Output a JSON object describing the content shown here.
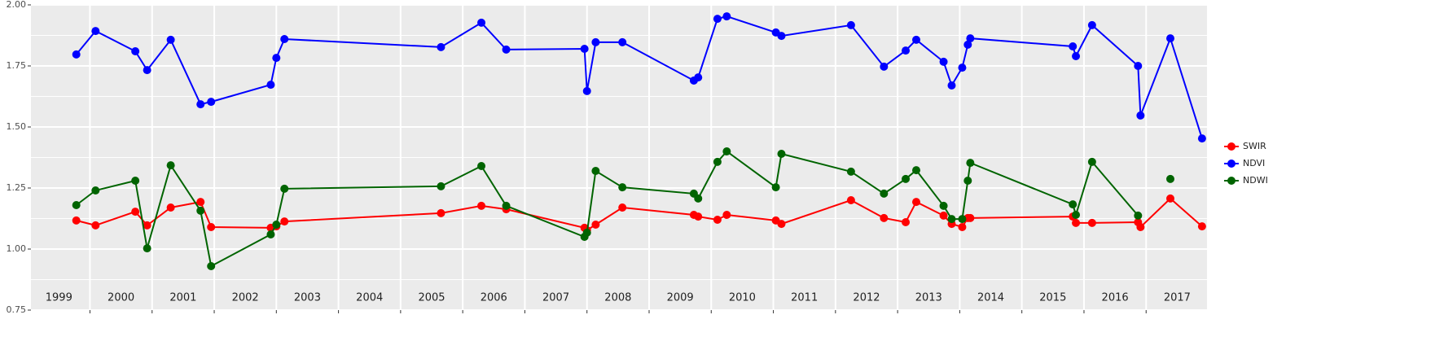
{
  "chart_data": {
    "type": "line",
    "x": [
      1999.78,
      2000.09,
      2000.73,
      2000.92,
      2001.3,
      2001.78,
      2001.95,
      2002.91,
      2003.0,
      2003.13,
      2005.65,
      2006.3,
      2006.7,
      2007.96,
      2008.0,
      2008.14,
      2008.57,
      2009.72,
      2009.79,
      2010.1,
      2010.25,
      2011.04,
      2011.13,
      2012.25,
      2012.78,
      2013.13,
      2013.3,
      2013.74,
      2013.87,
      2014.04,
      2014.13,
      2014.17,
      2015.82,
      2015.87,
      2016.13,
      2016.87,
      2016.91,
      2017.39,
      2017.9
    ],
    "series": [
      {
        "name": "SWIR",
        "color": "#ff0000",
        "values": [
          1.117,
          1.097,
          1.153,
          1.097,
          1.17,
          1.193,
          1.09,
          1.087,
          1.093,
          1.113,
          1.147,
          1.177,
          1.163,
          1.087,
          1.077,
          1.1,
          1.17,
          1.14,
          1.133,
          1.12,
          1.14,
          1.117,
          1.103,
          1.2,
          1.127,
          1.11,
          1.193,
          1.137,
          1.103,
          1.09,
          1.127,
          1.127,
          1.133,
          1.107,
          1.107,
          1.11,
          1.09,
          1.207,
          1.093
        ]
      },
      {
        "name": "NDVI",
        "color": "#0000ff",
        "values": [
          1.797,
          1.893,
          1.81,
          1.733,
          1.857,
          1.593,
          1.603,
          1.673,
          1.783,
          1.86,
          1.827,
          1.927,
          1.817,
          1.82,
          1.647,
          1.847,
          1.847,
          1.69,
          1.703,
          1.943,
          1.953,
          1.887,
          1.873,
          1.917,
          1.747,
          1.813,
          1.857,
          1.767,
          1.67,
          1.743,
          1.837,
          1.863,
          1.83,
          1.79,
          1.917,
          1.75,
          1.547,
          1.863,
          1.453
        ]
      },
      {
        "name": "NDWI",
        "color": "#006400",
        "values": [
          1.18,
          1.24,
          1.28,
          1.003,
          1.343,
          1.157,
          0.93,
          1.06,
          1.1,
          1.247,
          1.257,
          1.34,
          1.177,
          1.05,
          1.067,
          1.32,
          1.253,
          1.227,
          1.207,
          1.357,
          1.4,
          1.253,
          1.39,
          1.317,
          1.227,
          1.287,
          1.323,
          1.177,
          1.123,
          1.123,
          1.28,
          1.353,
          1.183,
          1.14,
          1.357,
          1.137,
          null,
          1.287,
          null
        ]
      }
    ],
    "xlim": [
      1999.05,
      2017.98
    ],
    "xticks": [
      {
        "value": 1999.5,
        "label": "1999"
      },
      {
        "value": 2000.5,
        "label": "2000"
      },
      {
        "value": 2001.5,
        "label": "2001"
      },
      {
        "value": 2002.5,
        "label": "2002"
      },
      {
        "value": 2003.5,
        "label": "2003"
      },
      {
        "value": 2004.5,
        "label": "2004"
      },
      {
        "value": 2005.5,
        "label": "2005"
      },
      {
        "value": 2006.5,
        "label": "2006"
      },
      {
        "value": 2007.5,
        "label": "2007"
      },
      {
        "value": 2008.5,
        "label": "2008"
      },
      {
        "value": 2009.5,
        "label": "2009"
      },
      {
        "value": 2010.5,
        "label": "2010"
      },
      {
        "value": 2011.5,
        "label": "2011"
      },
      {
        "value": 2012.5,
        "label": "2012"
      },
      {
        "value": 2013.5,
        "label": "2013"
      },
      {
        "value": 2014.5,
        "label": "2014"
      },
      {
        "value": 2015.5,
        "label": "2015"
      },
      {
        "value": 2016.5,
        "label": "2016"
      },
      {
        "value": 2017.5,
        "label": "2017"
      }
    ],
    "xgrid": [
      2000,
      2001,
      2002,
      2003,
      2004,
      2005,
      2006,
      2007,
      2008,
      2009,
      2010,
      2011,
      2012,
      2013,
      2014,
      2015,
      2016,
      2017
    ],
    "ylim": [
      0.75,
      2.0
    ],
    "yticks": [
      {
        "value": 0.75,
        "label": "0.75"
      },
      {
        "value": 1.0,
        "label": "1.00"
      },
      {
        "value": 1.25,
        "label": "1.25"
      },
      {
        "value": 1.5,
        "label": "1.50"
      },
      {
        "value": 1.75,
        "label": "1.75"
      },
      {
        "value": 2.0,
        "label": "2.00"
      }
    ],
    "yminor": [
      0.875,
      1.125,
      1.375,
      1.625,
      1.875
    ],
    "grid": true,
    "legend": "right"
  }
}
